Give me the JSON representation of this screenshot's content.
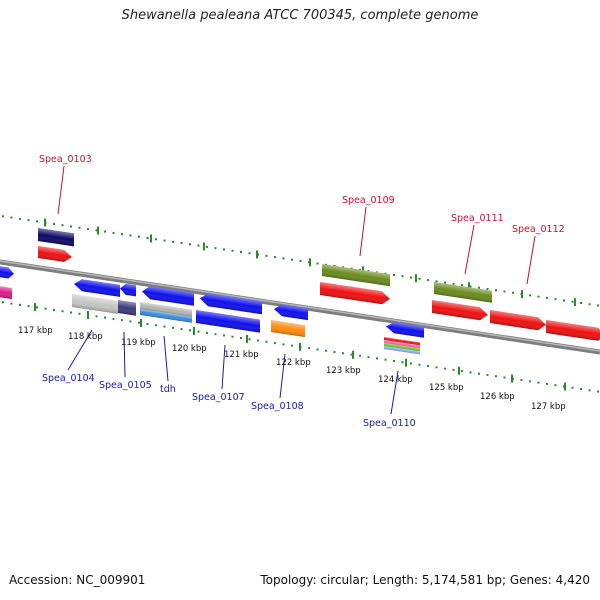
{
  "title": "Shewanella pealeana ATCC 700345, complete genome",
  "footer": {
    "accession": "Accession: NC_009901",
    "summary": "Topology: circular; Length: 5,174,581 bp; Genes: 4,420"
  },
  "colors": {
    "backbone": "#8a8a8a",
    "tick_green": "#2a8a2a",
    "label_red": "#c8102e",
    "label_blue": "#1a1aa8"
  },
  "scale": {
    "tick_labels": [
      "117 kbp",
      "118 kbp",
      "119 kbp",
      "120 kbp",
      "121 kbp",
      "122 kbp",
      "123 kbp",
      "124 kbp",
      "125 kbp",
      "126 kbp",
      "127 kbp"
    ]
  },
  "gene_labels": {
    "top": [
      "Spea_0103",
      "Spea_0109",
      "Spea_0111",
      "Spea_0112"
    ],
    "bottom": [
      "Spea_0104",
      "Spea_0105",
      "tdh",
      "Spea_0107",
      "Spea_0108",
      "Spea_0110"
    ]
  }
}
